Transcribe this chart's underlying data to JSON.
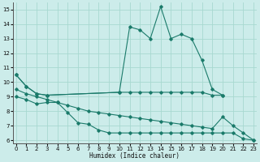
{
  "bg_color": "#ccecea",
  "grid_color": "#a8d8d0",
  "line_color": "#1a7a6a",
  "xlabel": "Humidex (Indice chaleur)",
  "xlim": [
    -0.3,
    23.3
  ],
  "ylim": [
    5.8,
    15.5
  ],
  "yticks": [
    6,
    7,
    8,
    9,
    10,
    11,
    12,
    13,
    14,
    15
  ],
  "xticks": [
    0,
    1,
    2,
    3,
    4,
    5,
    6,
    7,
    8,
    9,
    10,
    11,
    12,
    13,
    14,
    15,
    16,
    17,
    18,
    19,
    20,
    21,
    22,
    23
  ],
  "curve_peak_x": [
    0,
    1,
    2,
    3,
    10,
    11,
    12,
    13,
    14,
    15,
    16,
    17,
    18,
    19,
    20
  ],
  "curve_peak_y": [
    10.5,
    9.7,
    9.2,
    9.1,
    9.3,
    13.8,
    13.6,
    13.0,
    15.2,
    13.0,
    13.3,
    13.0,
    11.5,
    9.5,
    9.1
  ],
  "curve_flat_x": [
    0,
    1,
    2,
    3,
    10,
    11,
    12,
    13,
    14,
    15,
    16,
    17,
    18,
    19,
    20
  ],
  "curve_flat_y": [
    10.5,
    9.7,
    9.2,
    9.1,
    9.3,
    9.3,
    9.3,
    9.3,
    9.3,
    9.3,
    9.3,
    9.3,
    9.3,
    9.1,
    9.1
  ],
  "curve_mid_x": [
    0,
    1,
    2,
    3,
    4,
    5,
    6,
    7,
    8,
    9,
    10,
    11,
    12,
    13,
    14,
    15,
    16,
    17,
    18,
    19,
    20,
    21,
    22,
    23
  ],
  "curve_mid_y": [
    9.5,
    9.2,
    9.0,
    8.8,
    8.6,
    8.4,
    8.2,
    8.0,
    7.9,
    7.8,
    7.7,
    7.6,
    7.5,
    7.4,
    7.3,
    7.2,
    7.1,
    7.0,
    6.9,
    6.8,
    7.6,
    7.0,
    6.5,
    6.0
  ],
  "curve_low_x": [
    0,
    1,
    2,
    3,
    4,
    5,
    6,
    7,
    8,
    9,
    10,
    11,
    12,
    13,
    14,
    15,
    16,
    17,
    18,
    19,
    20,
    21,
    22,
    23
  ],
  "curve_low_y": [
    9.0,
    8.8,
    8.5,
    8.6,
    8.6,
    7.9,
    7.2,
    7.1,
    6.7,
    6.5,
    6.5,
    6.5,
    6.5,
    6.5,
    6.5,
    6.5,
    6.5,
    6.5,
    6.5,
    6.5,
    6.5,
    6.5,
    6.1,
    6.0
  ]
}
